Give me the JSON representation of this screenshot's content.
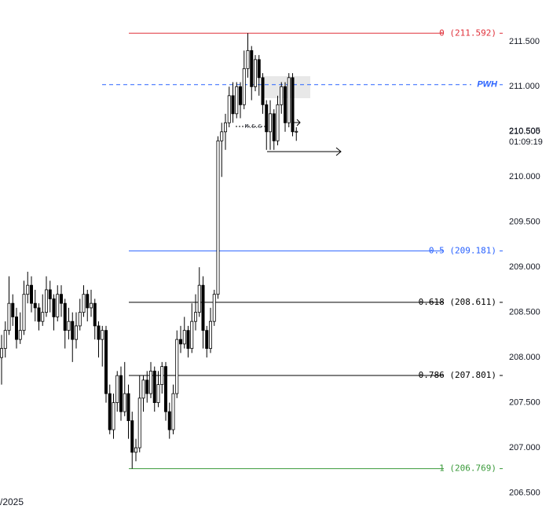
{
  "chart_data": {
    "type": "candlestick",
    "open": [
      208.0,
      208.1,
      208.3,
      208.6,
      208.45,
      208.2,
      208.3,
      208.7,
      208.8,
      208.6,
      208.55,
      208.4,
      208.5,
      208.75,
      208.65,
      208.45,
      208.7,
      208.6,
      208.3,
      208.4,
      208.2,
      208.35,
      208.5,
      208.7,
      208.55,
      208.6,
      208.35,
      208.2,
      208.3,
      207.6,
      207.2,
      207.5,
      207.8,
      207.4,
      207.6,
      207.3,
      206.95,
      207.0,
      207.55,
      207.75,
      207.6,
      207.85,
      207.5,
      207.7,
      207.9,
      207.4,
      207.2,
      207.6,
      208.2,
      208.15,
      208.3,
      208.1,
      208.4,
      208.5,
      208.8,
      208.3,
      208.1,
      208.4,
      208.7,
      210.4,
      210.5,
      210.6,
      210.9,
      210.7,
      211.0,
      210.8,
      211.2,
      211.4,
      211.0,
      211.3,
      211.1,
      210.8,
      210.5,
      210.7,
      210.4,
      210.8,
      211.0,
      210.6,
      211.1,
      210.5
    ],
    "high": [
      208.25,
      208.4,
      208.9,
      208.7,
      208.55,
      208.5,
      208.85,
      208.95,
      208.9,
      208.75,
      208.6,
      208.7,
      208.9,
      208.85,
      208.7,
      208.8,
      208.8,
      208.65,
      208.55,
      208.5,
      208.5,
      208.65,
      208.8,
      208.75,
      208.75,
      208.65,
      208.4,
      208.35,
      208.35,
      207.7,
      207.6,
      207.85,
      207.9,
      207.95,
      207.7,
      207.4,
      207.1,
      207.8,
      207.8,
      207.85,
      207.95,
      207.9,
      207.85,
      207.95,
      207.95,
      207.5,
      207.7,
      208.3,
      208.35,
      208.45,
      208.35,
      208.6,
      208.7,
      209.0,
      208.9,
      208.35,
      208.55,
      208.75,
      210.45,
      210.6,
      210.7,
      211.0,
      211.05,
      211.05,
      211.05,
      211.4,
      211.592,
      211.45,
      211.35,
      211.35,
      211.15,
      210.85,
      210.85,
      210.75,
      210.9,
      211.05,
      211.05,
      211.15,
      211.15,
      210.55
    ],
    "low": [
      207.7,
      208.0,
      208.25,
      208.35,
      208.1,
      208.15,
      208.25,
      208.6,
      208.5,
      208.4,
      208.3,
      208.35,
      208.45,
      208.5,
      208.3,
      208.4,
      208.45,
      208.1,
      208.2,
      207.95,
      208.1,
      208.3,
      208.45,
      208.4,
      208.45,
      208.2,
      208.0,
      207.9,
      207.5,
      207.15,
      207.1,
      207.4,
      207.3,
      207.35,
      207.1,
      206.769,
      206.85,
      206.95,
      207.4,
      207.5,
      207.55,
      207.4,
      207.45,
      207.6,
      207.3,
      207.1,
      207.15,
      207.55,
      208.05,
      208.1,
      208.0,
      208.05,
      208.3,
      208.45,
      208.1,
      208.0,
      208.05,
      208.35,
      208.65,
      210.0,
      210.3,
      210.55,
      210.6,
      210.65,
      210.65,
      210.75,
      211.1,
      210.85,
      210.95,
      210.9,
      210.7,
      210.3,
      210.3,
      210.3,
      210.35,
      210.7,
      210.5,
      210.55,
      210.45,
      210.4
    ],
    "close": [
      208.1,
      208.3,
      208.6,
      208.45,
      208.2,
      208.3,
      208.7,
      208.8,
      208.6,
      208.55,
      208.4,
      208.5,
      208.75,
      208.65,
      208.45,
      208.7,
      208.6,
      208.3,
      208.4,
      208.2,
      208.35,
      208.5,
      208.7,
      208.55,
      208.6,
      208.35,
      208.2,
      208.3,
      207.6,
      207.2,
      207.5,
      207.8,
      207.4,
      207.6,
      207.3,
      206.95,
      207.0,
      207.55,
      207.75,
      207.6,
      207.85,
      207.5,
      207.7,
      207.9,
      207.4,
      207.2,
      207.6,
      208.2,
      208.15,
      208.3,
      208.1,
      208.4,
      208.5,
      208.8,
      208.3,
      208.1,
      208.4,
      208.7,
      210.4,
      210.5,
      210.6,
      210.9,
      210.7,
      211.0,
      210.8,
      211.2,
      211.4,
      211.0,
      211.3,
      211.1,
      210.8,
      210.5,
      210.7,
      210.4,
      210.8,
      211.0,
      210.6,
      211.1,
      210.5,
      210.505
    ],
    "up_color": "#ffffff",
    "down_color": "#000000",
    "ylim": [
      206.2,
      211.96
    ],
    "yticks": [
      {
        "value": 206.5,
        "label": "206.500"
      },
      {
        "value": 207.0,
        "label": "207.000"
      },
      {
        "value": 207.5,
        "label": "207.500"
      },
      {
        "value": 208.0,
        "label": "208.000"
      },
      {
        "value": 208.5,
        "label": "208.500"
      },
      {
        "value": 209.0,
        "label": "209.000"
      },
      {
        "value": 209.5,
        "label": "209.500"
      },
      {
        "value": 210.0,
        "label": "210.000"
      },
      {
        "value": 210.5,
        "label": "210.500"
      },
      {
        "value": 211.0,
        "label": "211.000"
      },
      {
        "value": 211.5,
        "label": "211.500"
      }
    ],
    "levels": [
      {
        "label": "0 (211.592)",
        "value": 211.592,
        "color": "#e0303a"
      },
      {
        "label": "PWH",
        "value": 211.022,
        "color": "#2962ff",
        "dashed": true
      },
      {
        "label": "0.5 (209.181)",
        "value": 209.181,
        "color": "#2962ff"
      },
      {
        "label": "0.618 (208.611)",
        "value": 208.611,
        "color": "#000000"
      },
      {
        "label": "0.786 (207.801)",
        "value": 207.801,
        "color": "#000000"
      },
      {
        "label": "1 (206.769)",
        "value": 206.769,
        "color": "#3a9a3a"
      }
    ],
    "last_price": 210.505,
    "countdown": "01:09:19",
    "mss_label": "M.S.S",
    "date_fragment": "/2025"
  }
}
